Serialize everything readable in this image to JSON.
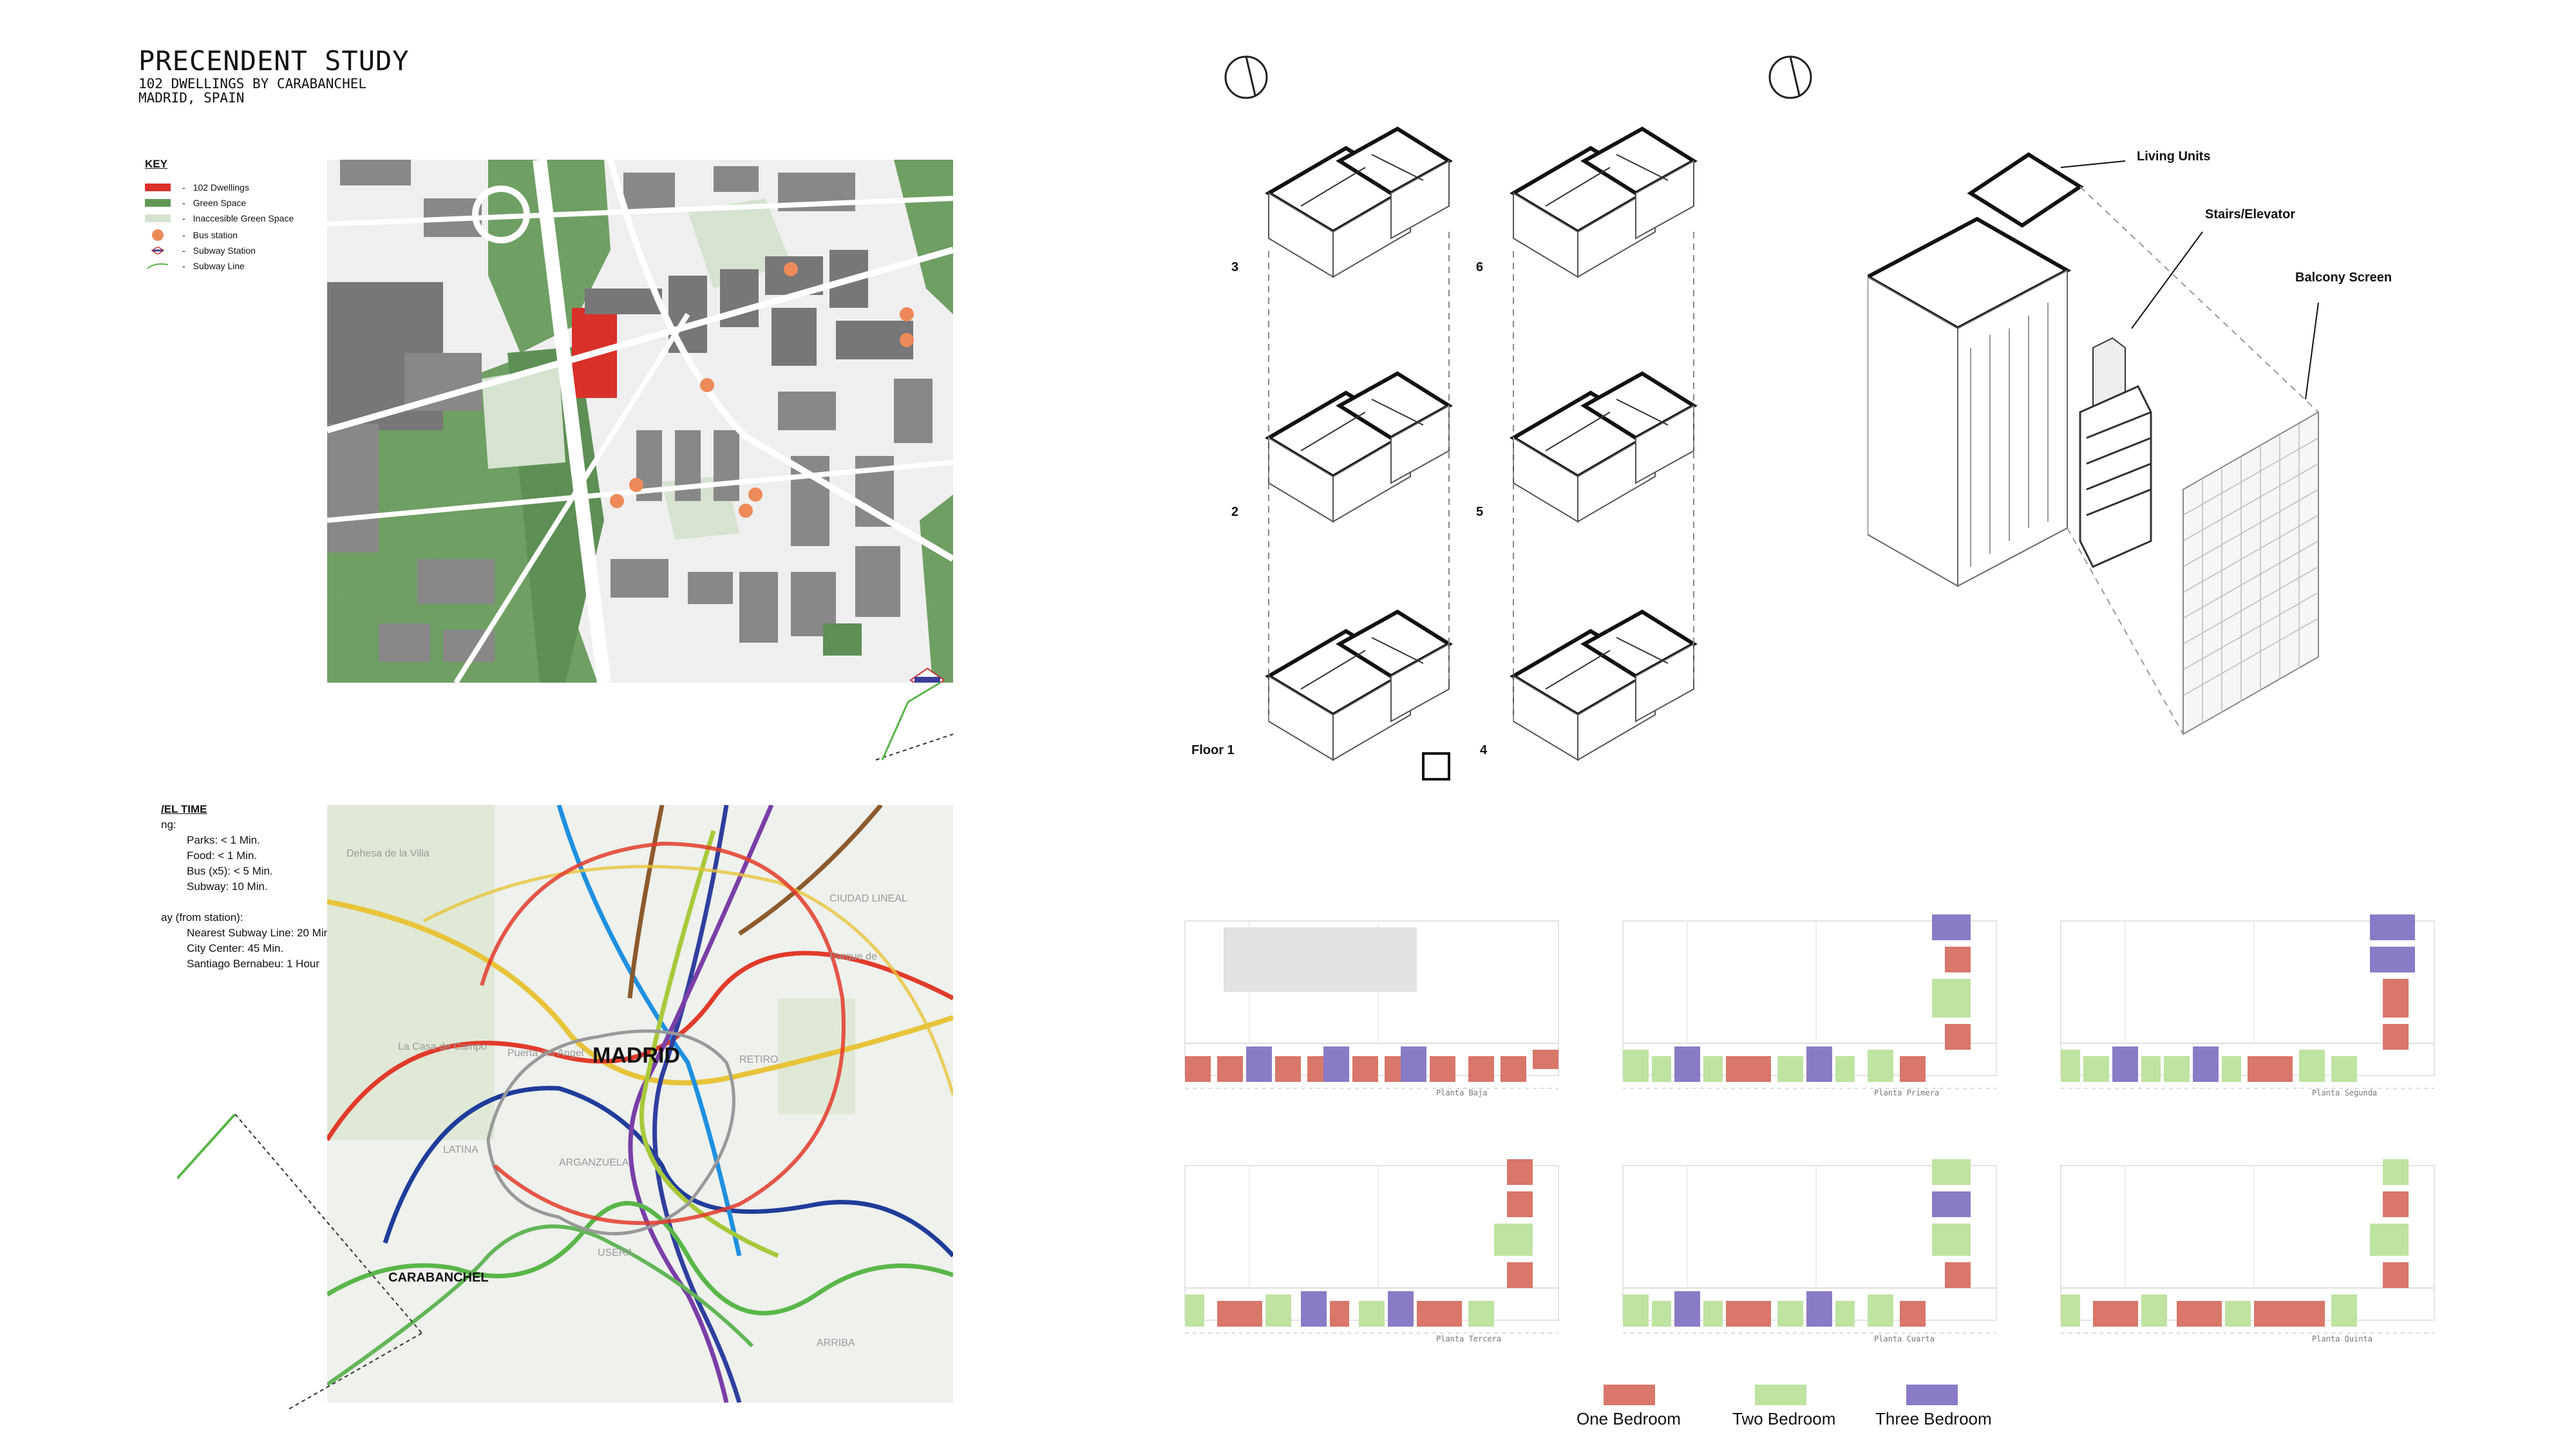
{
  "header": {
    "title": "PRECENDENT STUDY",
    "line1": "102 DWELLINGS BY CARABANCHEL",
    "line2": "MADRID, SPAIN"
  },
  "key": {
    "title": "KEY",
    "items": [
      {
        "label": "102 Dwellings",
        "color": "#d9302a"
      },
      {
        "label": "Green Space",
        "color": "#5f9a55"
      },
      {
        "label": "Inaccesible Green Space",
        "color": "#d5e3cf"
      },
      {
        "label": "Bus station",
        "color": "#ee8a5a"
      },
      {
        "label": "Subway Station",
        "color": "#3b3f9a"
      },
      {
        "label": "Subway Line",
        "color": "#59b649"
      }
    ]
  },
  "travel": {
    "title": "/EL TIME",
    "line1": "ng:",
    "line2": "Parks: < 1 Min.",
    "line3": "Food: < 1 Min.",
    "line4": "Bus (x5): < 5 Min.",
    "line5": "Subway: 10 Min.",
    "line6": "ay (from station):",
    "line7": "Nearest Subway Line: 20 Min.",
    "line8": "City Center: 45 Min.",
    "line9": "Santiago Bernabeu: 1 Hour"
  },
  "map": {
    "city": "MADRID",
    "district": "CARABANCHEL",
    "faint_labels": [
      "Dehesa de la Villa",
      "CIUDAD LINEAL",
      "RETIRO",
      "LATINA",
      "ARGANZUELA",
      "USERA",
      "La Casa de Campo",
      "Puerta del Ángel",
      "Parque de",
      "ARRIBA"
    ]
  },
  "axon": {
    "floors_left": [
      "3",
      "2",
      "Floor 1"
    ],
    "floors_right": [
      "6",
      "5",
      "4"
    ],
    "labels": {
      "living": "Living Units",
      "stairs": "Stairs/Elevator",
      "balcony": "Balcony Screen"
    }
  },
  "plans": {
    "captions": [
      "Planta Baja",
      "Planta Primera",
      "Planta Segunda",
      "Planta Tercera",
      "Planta Cuarta",
      "Planta Quinta"
    ]
  },
  "legend": {
    "items": [
      {
        "label": "One Bedroom",
        "color": "#d8776a"
      },
      {
        "label": "Two Bedroom",
        "color": "#bfe3a1"
      },
      {
        "label": "Three Bedroom",
        "color": "#8a7bc6"
      }
    ]
  }
}
